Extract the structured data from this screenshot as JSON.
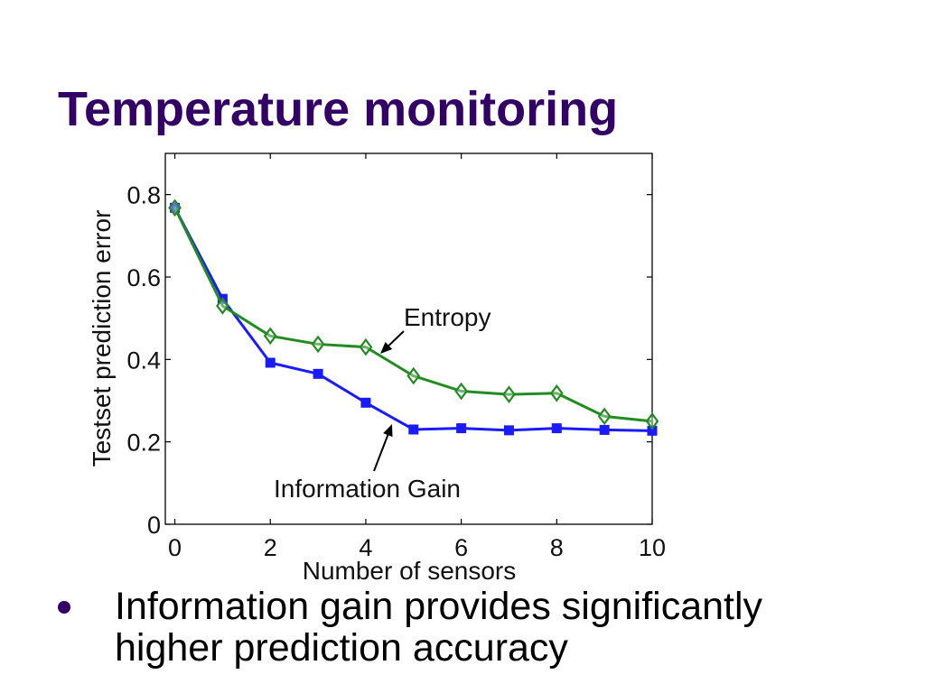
{
  "slide": {
    "title": "Temperature monitoring",
    "bullets": [
      "Information gain provides significantly higher prediction accuracy"
    ]
  },
  "colors": {
    "title": "#330066",
    "bullet_marker": "#330066",
    "text": "#000000"
  },
  "chart_data": {
    "type": "line",
    "xlabel": "Number of sensors",
    "ylabel": "Testset prediction error",
    "xlim": [
      -0.2,
      10
    ],
    "ylim": [
      0,
      0.9
    ],
    "xticks": [
      0,
      2,
      4,
      6,
      8,
      10
    ],
    "xtick_labels": [
      "0",
      "2",
      "4",
      "6",
      "8",
      "10"
    ],
    "yticks": [
      0,
      0.2,
      0.4,
      0.6,
      0.8
    ],
    "ytick_labels": [
      "0",
      "0.2",
      "0.4",
      "0.6",
      "0.8"
    ],
    "grid": false,
    "box": true,
    "x": [
      0,
      1,
      2,
      3,
      4,
      5,
      6,
      7,
      8,
      9,
      10
    ],
    "series": [
      {
        "name": "Entropy",
        "color": "#228b22",
        "marker": "diamond",
        "values": [
          0.768,
          0.53,
          0.457,
          0.437,
          0.43,
          0.36,
          0.323,
          0.315,
          0.318,
          0.262,
          0.25
        ]
      },
      {
        "name": "Information Gain",
        "color": "#1a1aff",
        "marker": "square",
        "values": [
          0.768,
          0.547,
          0.392,
          0.365,
          0.295,
          0.23,
          0.233,
          0.228,
          0.233,
          0.229,
          0.227
        ]
      }
    ]
  }
}
